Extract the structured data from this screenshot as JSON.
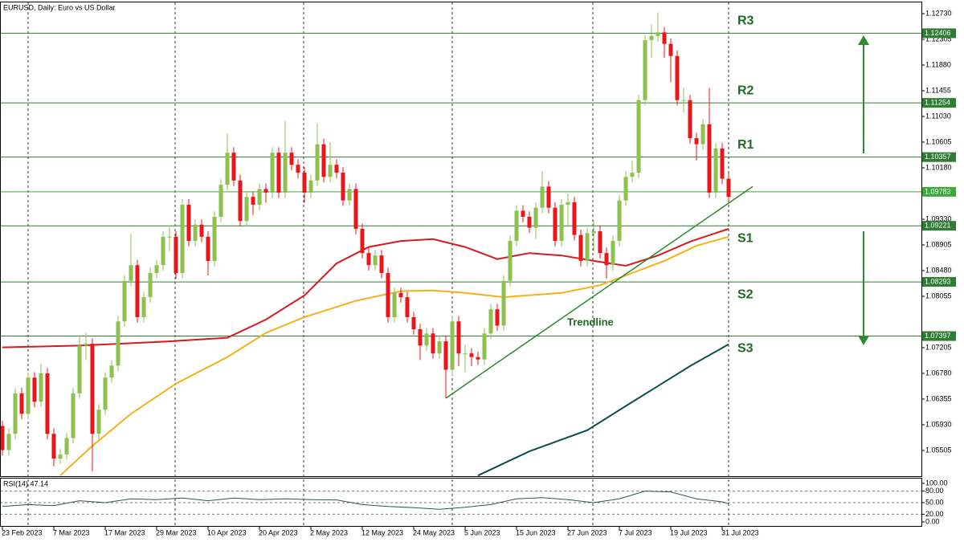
{
  "chart_data": {
    "type": "candlestick",
    "title": "EURUSD, Daily:  Euro vs US Dollar",
    "xlim": [
      -0.375,
      143
    ],
    "xticks": [
      {
        "value": 0,
        "label": "23 Feb 2023"
      },
      {
        "value": 8,
        "label": "7 Mar 2023"
      },
      {
        "value": 16,
        "label": "17 Mar 2023"
      },
      {
        "value": 24,
        "label": "29 Mar 2023"
      },
      {
        "value": 32,
        "label": "10 Apr 2023"
      },
      {
        "value": 40,
        "label": "20 Apr 2023"
      },
      {
        "value": 48,
        "label": "2 May 2023"
      },
      {
        "value": 56,
        "label": "12 May 2023"
      },
      {
        "value": 64,
        "label": "24 May 2023"
      },
      {
        "value": 72,
        "label": "5 Jun 2023"
      },
      {
        "value": 80,
        "label": "15 Jun 2023"
      },
      {
        "value": 88,
        "label": "27 Jun 2023"
      },
      {
        "value": 96,
        "label": "7 Jul 2023"
      },
      {
        "value": 104,
        "label": "19 Jul 2023"
      },
      {
        "value": 112,
        "label": "31 Jul 2023"
      }
    ],
    "ylim": [
      1.05093,
      1.12916
    ],
    "yticks": [
      {
        "value": 1.1273,
        "label": "1.12730"
      },
      {
        "value": 1.12305,
        "label": "1.12305"
      },
      {
        "value": 1.1188,
        "label": "1.11880"
      },
      {
        "value": 1.11455,
        "label": "1.11455"
      },
      {
        "value": 1.1103,
        "label": "1.11030"
      },
      {
        "value": 1.10605,
        "label": "1.10605"
      },
      {
        "value": 1.1018,
        "label": "1.10180"
      },
      {
        "value": 1.0933,
        "label": "1.09330"
      },
      {
        "value": 1.08905,
        "label": "1.08905"
      },
      {
        "value": 1.0848,
        "label": "1.08480"
      },
      {
        "value": 1.08055,
        "label": "1.08055"
      },
      {
        "value": 1.07205,
        "label": "1.07205"
      },
      {
        "value": 1.0678,
        "label": "1.06780"
      },
      {
        "value": 1.06355,
        "label": "1.06355"
      },
      {
        "value": 1.0593,
        "label": "1.05930"
      },
      {
        "value": 1.05505,
        "label": "1.05505"
      }
    ],
    "colors": {
      "up": "#8cc152",
      "down": "#e8161b"
    },
    "open": [
      1.0591,
      1.0551,
      1.0578,
      1.0645,
      1.0611,
      1.0671,
      1.0631,
      1.0678,
      1.0578,
      1.0537,
      1.0544,
      1.0571,
      1.0645,
      1.0724,
      1.0727,
      1.0578,
      1.0618,
      1.0671,
      1.0691,
      1.0764,
      1.0831,
      1.0857,
      1.0771,
      1.0804,
      1.0844,
      1.0857,
      1.0904,
      1.0904,
      1.0844,
      1.0957,
      1.0897,
      1.0924,
      1.0904,
      1.0864,
      1.0937,
      1.099,
      1.1043,
      1.0997,
      1.093,
      1.097,
      1.0957,
      1.0983,
      1.0977,
      1.1043,
      1.0977,
      1.1043,
      1.1023,
      1.101,
      1.0977,
      1.0997,
      1.1057,
      1.1003,
      1.1023,
      1.101,
      1.0964,
      1.0983,
      1.0917,
      1.0877,
      1.0857,
      1.0873,
      1.0844,
      1.0771,
      1.0811,
      1.0804,
      1.0771,
      1.0751,
      1.0724,
      1.0744,
      1.0711,
      1.0731,
      1.0684,
      1.0764,
      1.0711,
      1.0711,
      1.0705,
      1.0701,
      1.0744,
      1.0784,
      1.0757,
      1.0831,
      1.0897,
      1.0947,
      1.0937,
      1.0919,
      1.0952,
      1.0987,
      1.0952,
      1.0897,
      1.0957,
      1.0961,
      1.0907,
      1.0864,
      1.091,
      1.0913,
      1.0877,
      1.0857,
      1.0897,
      1.0964,
      1.1003,
      1.101,
      1.113,
      1.1229,
      1.1236,
      1.1242,
      1.1223,
      1.1203,
      1.113,
      1.113,
      1.1067,
      1.1057,
      1.109,
      1.0977,
      1.105,
      1.1
    ],
    "high": [
      1.06,
      1.0587,
      1.0654,
      1.0654,
      1.068,
      1.068,
      1.0694,
      1.0687,
      1.0587,
      1.0553,
      1.058,
      1.0654,
      1.074,
      1.0745,
      1.0736,
      1.0627,
      1.068,
      1.07,
      1.0773,
      1.084,
      1.0909,
      1.0866,
      1.0813,
      1.0853,
      1.0866,
      1.0913,
      1.092,
      1.0913,
      1.0966,
      1.0966,
      1.0933,
      1.0933,
      1.0913,
      1.0946,
      1.0999,
      1.1075,
      1.1052,
      1.1006,
      1.0979,
      1.0979,
      1.0992,
      1.0992,
      1.1052,
      1.1052,
      1.1095,
      1.1052,
      1.1032,
      1.1019,
      1.1006,
      1.1091,
      1.1066,
      1.106,
      1.1032,
      1.1019,
      1.0992,
      1.0992,
      1.0926,
      1.0886,
      1.0882,
      1.0882,
      1.0853,
      1.082,
      1.082,
      1.0813,
      1.078,
      1.076,
      1.0753,
      1.0753,
      1.074,
      1.074,
      1.0773,
      1.0773,
      1.0725,
      1.072,
      1.0714,
      1.0753,
      1.0793,
      1.0793,
      1.084,
      1.0906,
      1.0956,
      1.0956,
      1.0946,
      1.0961,
      1.1012,
      1.0996,
      1.0961,
      1.0966,
      1.0975,
      1.097,
      1.0916,
      1.0919,
      1.093,
      1.0922,
      1.0886,
      1.0906,
      1.0973,
      1.1012,
      1.103,
      1.1139,
      1.1238,
      1.1255,
      1.1275,
      1.1251,
      1.1232,
      1.1212,
      1.115,
      1.1139,
      1.1076,
      1.1099,
      1.115,
      1.1059,
      1.1059,
      1.1009
    ],
    "low": [
      1.0542,
      1.0542,
      1.0569,
      1.0602,
      1.0602,
      1.0622,
      1.0622,
      1.0569,
      1.0524,
      1.0528,
      1.0535,
      1.0562,
      1.0636,
      1.07,
      1.0516,
      1.0569,
      1.0609,
      1.0662,
      1.0682,
      1.0755,
      1.0822,
      1.0762,
      1.0762,
      1.0795,
      1.0835,
      1.0848,
      1.088,
      1.0835,
      1.0835,
      1.0888,
      1.0888,
      1.0895,
      1.084,
      1.0855,
      1.0928,
      1.0981,
      1.0988,
      1.0921,
      1.0921,
      1.094,
      1.0948,
      1.096,
      1.0968,
      1.0968,
      1.0968,
      1.1014,
      1.1001,
      1.096,
      1.0968,
      1.0988,
      1.0994,
      1.0994,
      1.1001,
      1.0955,
      1.0955,
      1.0908,
      1.0868,
      1.0848,
      1.0848,
      1.0835,
      1.0762,
      1.0762,
      1.0795,
      1.0762,
      1.0742,
      1.07,
      1.0715,
      1.0702,
      1.0702,
      1.0637,
      1.0675,
      1.069,
      1.068,
      1.069,
      1.0692,
      1.0692,
      1.0735,
      1.0748,
      1.0748,
      1.0822,
      1.0888,
      1.0928,
      1.091,
      1.09,
      1.0943,
      1.0943,
      1.0888,
      1.0888,
      1.092,
      1.0898,
      1.0855,
      1.0855,
      1.088,
      1.0868,
      1.0835,
      1.0848,
      1.0888,
      1.0955,
      1.0994,
      1.1001,
      1.1121,
      1.12,
      1.1227,
      1.12,
      1.116,
      1.1121,
      1.111,
      1.1058,
      1.103,
      1.1048,
      1.0968,
      1.0968,
      1.0991,
      1.0961
    ],
    "close": [
      1.0551,
      1.0578,
      1.0645,
      1.0611,
      1.0671,
      1.0631,
      1.0678,
      1.0578,
      1.0537,
      1.0544,
      1.0571,
      1.0645,
      1.0724,
      1.0727,
      1.0578,
      1.0618,
      1.0671,
      1.0691,
      1.0764,
      1.0831,
      1.0857,
      1.0771,
      1.0804,
      1.0844,
      1.0857,
      1.0904,
      1.0904,
      1.0844,
      1.0957,
      1.0897,
      1.0924,
      1.0904,
      1.0864,
      1.0937,
      1.099,
      1.1043,
      1.0997,
      1.093,
      1.097,
      1.0957,
      1.0983,
      1.0977,
      1.1043,
      1.0977,
      1.1043,
      1.1023,
      1.101,
      1.0977,
      1.0997,
      1.1057,
      1.1003,
      1.1023,
      1.101,
      1.0964,
      1.0983,
      1.0917,
      1.0877,
      1.0857,
      1.0873,
      1.0844,
      1.0771,
      1.0811,
      1.0804,
      1.0771,
      1.0751,
      1.0724,
      1.0744,
      1.0711,
      1.0731,
      1.0684,
      1.0764,
      1.0711,
      1.0711,
      1.0705,
      1.0701,
      1.0744,
      1.0784,
      1.0757,
      1.0831,
      1.0897,
      1.0947,
      1.0937,
      1.0919,
      1.0952,
      1.0987,
      1.0952,
      1.0897,
      1.0957,
      1.0961,
      1.0907,
      1.0864,
      1.091,
      1.0913,
      1.0877,
      1.0857,
      1.0897,
      1.0964,
      1.1003,
      1.101,
      1.113,
      1.1229,
      1.1236,
      1.1242,
      1.1223,
      1.1203,
      1.113,
      1.113,
      1.1067,
      1.1057,
      1.109,
      1.0977,
      1.105,
      1.1,
      1.097
    ],
    "moving_averages": [
      {
        "color": "#d8191e",
        "x": [
          0,
          12,
          26,
          35,
          41,
          47,
          52,
          57,
          62,
          67,
          72,
          77,
          82,
          87,
          92,
          97,
          102,
          107,
          113
        ],
        "values": [
          1.0721,
          1.0724,
          1.0731,
          1.0737,
          1.0767,
          1.0807,
          1.086,
          1.0887,
          1.0897,
          1.09,
          1.0887,
          1.0867,
          1.0877,
          1.0873,
          1.0864,
          1.0856,
          1.0873,
          1.0896,
          1.0917
        ]
      },
      {
        "color": "#f5b01a",
        "x": [
          9,
          14,
          20,
          27,
          35,
          41,
          47,
          55,
          62,
          67,
          72,
          78,
          87,
          93,
          98,
          103,
          108,
          113
        ],
        "values": [
          1.0509,
          1.0558,
          1.0611,
          1.0661,
          1.0705,
          1.0745,
          1.0771,
          1.0798,
          1.0814,
          1.0815,
          1.0811,
          1.0804,
          1.0811,
          1.0824,
          1.0844,
          1.0864,
          1.0889,
          1.0904
        ]
      },
      {
        "color": "#0b4d4a",
        "x": [
          74,
          82,
          91,
          97,
          102,
          107,
          113
        ],
        "values": [
          1.0509,
          1.0549,
          1.0584,
          1.0624,
          1.0657,
          1.069,
          1.0726
        ]
      }
    ],
    "levels": [
      {
        "label": "R3",
        "value": 1.12406
      },
      {
        "label": "R2",
        "value": 1.11254
      },
      {
        "label": "R1",
        "value": 1.10357
      },
      {
        "label": "S1",
        "value": 1.09221
      },
      {
        "label": "S2",
        "value": 1.08293
      },
      {
        "label": "S3",
        "value": 1.07397
      }
    ],
    "level_color": "#2e7d32",
    "current_price": 1.09783,
    "current_price_color": "#3aa83a",
    "trendline": {
      "label": "Trendline",
      "color": "#2a8a2a",
      "x": [
        69,
        116.75
      ],
      "values": [
        1.0637,
        1.0987
      ]
    },
    "rsi": {
      "label": "RSI(14) 47.14",
      "color": "#2f5a3a",
      "ylim": [
        0,
        100
      ],
      "yticks": [
        {
          "value": 100,
          "label": "100.00"
        },
        {
          "value": 80,
          "label": "80.00"
        },
        {
          "value": 50,
          "label": "50.00"
        },
        {
          "value": 20,
          "label": "20.00"
        },
        {
          "value": 0,
          "label": "0.00"
        }
      ],
      "x": [
        0,
        4,
        8,
        12,
        16,
        20,
        24,
        28,
        32,
        36,
        40,
        44,
        48,
        52,
        56,
        60,
        64,
        68,
        72,
        76,
        80,
        84,
        88,
        92,
        96,
        100,
        104,
        108,
        112,
        113
      ],
      "values": [
        40,
        45,
        42,
        55,
        50,
        60,
        58,
        62,
        55,
        62,
        58,
        60,
        58,
        57,
        45,
        40,
        37,
        33,
        38,
        45,
        60,
        63,
        58,
        50,
        60,
        80,
        78,
        60,
        52,
        47.14
      ]
    }
  }
}
